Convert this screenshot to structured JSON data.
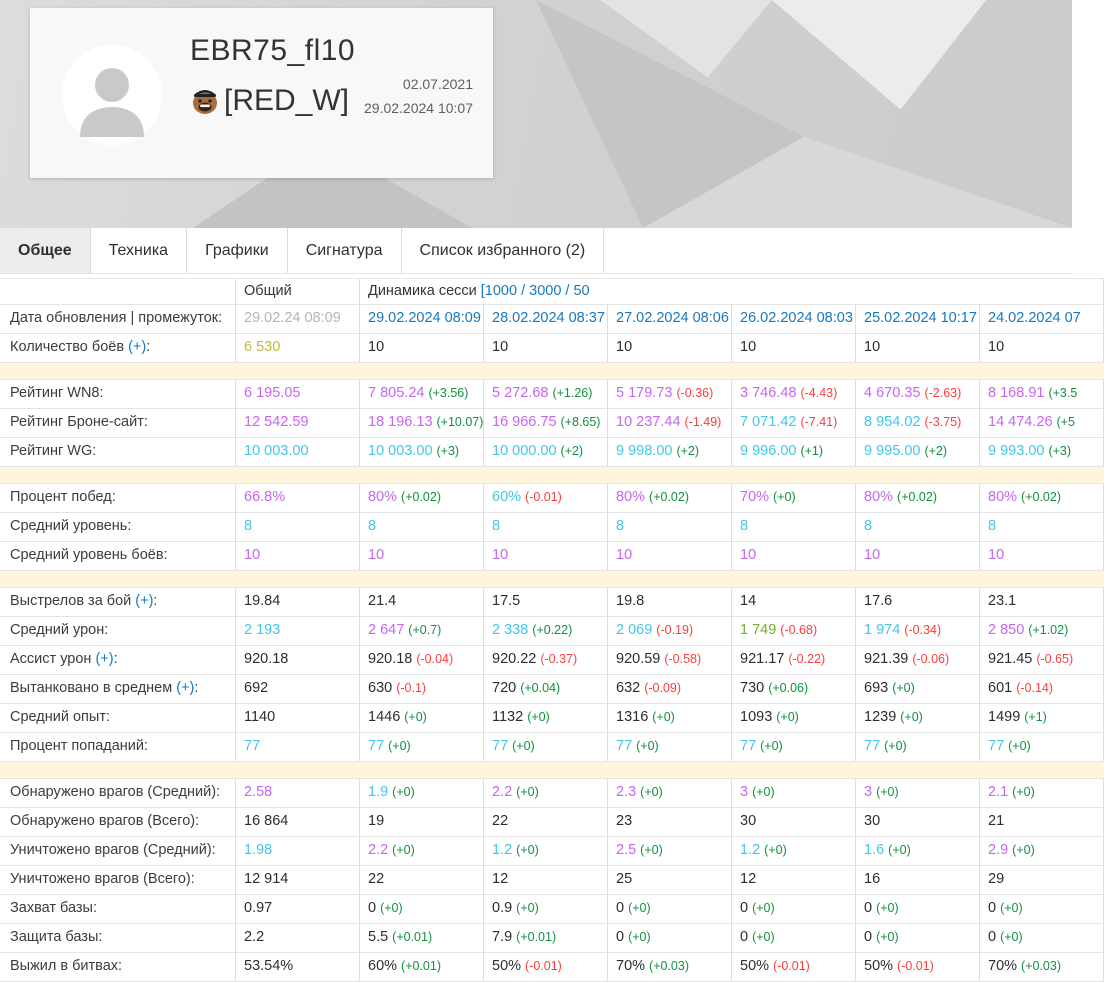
{
  "profile": {
    "name": "EBR75_fl10",
    "clan": "[RED_W]",
    "registered": "02.07.2021",
    "last_update": "29.02.2024 10:07"
  },
  "tabs": [
    {
      "name": "tab-general",
      "label": "Общее",
      "active": true
    },
    {
      "name": "tab-vehicles",
      "label": "Техника",
      "active": false
    },
    {
      "name": "tab-charts",
      "label": "Графики",
      "active": false
    },
    {
      "name": "tab-signature",
      "label": "Сигнатура",
      "active": false
    },
    {
      "name": "tab-favorites",
      "label": "Список избранного (2)",
      "active": false
    }
  ],
  "table": {
    "header": {
      "overall": "Общий",
      "dynamics": "Динамика сесси",
      "dynamics_link": "[1000 / 3000 / 50"
    },
    "rows": [
      {
        "label": "Дата обновления | промежуток",
        "plus": false,
        "cells": [
          {
            "v": "29.02.24 08:09",
            "vc": "gray"
          },
          {
            "v": "29.02.2024 08:09",
            "vc": "blue",
            "link": true
          },
          {
            "v": "28.02.2024 08:37",
            "vc": "blue",
            "link": true
          },
          {
            "v": "27.02.2024 08:06",
            "vc": "blue",
            "link": true
          },
          {
            "v": "26.02.2024 08:03",
            "vc": "blue",
            "link": true
          },
          {
            "v": "25.02.2024 10:17",
            "vc": "blue",
            "link": true
          },
          {
            "v": "24.02.2024 07",
            "vc": "blue",
            "link": true
          }
        ]
      },
      {
        "label": "Количество боёв",
        "plus": true,
        "cells": [
          {
            "v": "6 530",
            "vc": "olive"
          },
          {
            "v": "10"
          },
          {
            "v": "10"
          },
          {
            "v": "10"
          },
          {
            "v": "10"
          },
          {
            "v": "10"
          },
          {
            "v": "10"
          }
        ]
      },
      {
        "spacer": true
      },
      {
        "label": "Рейтинг WN8",
        "plus": false,
        "cells": [
          {
            "v": "6 195.05",
            "vc": "purple"
          },
          {
            "v": "7 805.24",
            "vc": "purple",
            "d": "(+3.56)",
            "dc": "up"
          },
          {
            "v": "5 272.68",
            "vc": "purple",
            "d": "(+1.26)",
            "dc": "up"
          },
          {
            "v": "5 179.73",
            "vc": "purple",
            "d": "(-0.36)",
            "dc": "down"
          },
          {
            "v": "3 746.48",
            "vc": "purple",
            "d": "(-4.43)",
            "dc": "down"
          },
          {
            "v": "4 670.35",
            "vc": "purple",
            "d": "(-2.63)",
            "dc": "down"
          },
          {
            "v": "8 168.91",
            "vc": "purple",
            "d": "(+3.5",
            "dc": "up"
          }
        ]
      },
      {
        "label": "Рейтинг Броне-сайт",
        "plus": false,
        "cells": [
          {
            "v": "12 542.59",
            "vc": "purple"
          },
          {
            "v": "18 196.13",
            "vc": "purple",
            "d": "(+10.07)",
            "dc": "up"
          },
          {
            "v": "16 966.75",
            "vc": "purple",
            "d": "(+8.65)",
            "dc": "up"
          },
          {
            "v": "10 237.44",
            "vc": "purple",
            "d": "(-1.49)",
            "dc": "down"
          },
          {
            "v": "7 071.42",
            "vc": "cyan",
            "d": "(-7.41)",
            "dc": "down"
          },
          {
            "v": "8 954.02",
            "vc": "cyan",
            "d": "(-3.75)",
            "dc": "down"
          },
          {
            "v": "14 474.26",
            "vc": "purple",
            "d": "(+5",
            "dc": "up"
          }
        ]
      },
      {
        "label": "Рейтинг WG",
        "plus": false,
        "cells": [
          {
            "v": "10 003.00",
            "vc": "cyan"
          },
          {
            "v": "10 003.00",
            "vc": "cyan",
            "d": "(+3)",
            "dc": "up"
          },
          {
            "v": "10 000.00",
            "vc": "cyan",
            "d": "(+2)",
            "dc": "up"
          },
          {
            "v": "9 998.00",
            "vc": "cyan",
            "d": "(+2)",
            "dc": "up"
          },
          {
            "v": "9 996.00",
            "vc": "cyan",
            "d": "(+1)",
            "dc": "up"
          },
          {
            "v": "9 995.00",
            "vc": "cyan",
            "d": "(+2)",
            "dc": "up"
          },
          {
            "v": "9 993.00",
            "vc": "cyan",
            "d": "(+3)",
            "dc": "up"
          }
        ]
      },
      {
        "spacer": true
      },
      {
        "label": "Процент побед",
        "plus": false,
        "cells": [
          {
            "v": "66.8%",
            "vc": "purple"
          },
          {
            "v": "80%",
            "vc": "purple",
            "d": "(+0.02)",
            "dc": "up"
          },
          {
            "v": "60%",
            "vc": "cyan",
            "d": "(-0.01)",
            "dc": "down"
          },
          {
            "v": "80%",
            "vc": "purple",
            "d": "(+0.02)",
            "dc": "up"
          },
          {
            "v": "70%",
            "vc": "purple",
            "d": "(+0)",
            "dc": "up"
          },
          {
            "v": "80%",
            "vc": "purple",
            "d": "(+0.02)",
            "dc": "up"
          },
          {
            "v": "80%",
            "vc": "purple",
            "d": "(+0.02)",
            "dc": "up"
          }
        ]
      },
      {
        "label": "Средний уровень",
        "plus": false,
        "cells": [
          {
            "v": "8",
            "vc": "cyan"
          },
          {
            "v": "8",
            "vc": "cyan"
          },
          {
            "v": "8",
            "vc": "cyan"
          },
          {
            "v": "8",
            "vc": "cyan"
          },
          {
            "v": "8",
            "vc": "cyan"
          },
          {
            "v": "8",
            "vc": "cyan"
          },
          {
            "v": "8",
            "vc": "cyan"
          }
        ]
      },
      {
        "label": "Средний уровень боёв",
        "plus": false,
        "cells": [
          {
            "v": "10",
            "vc": "purple"
          },
          {
            "v": "10",
            "vc": "purple"
          },
          {
            "v": "10",
            "vc": "purple"
          },
          {
            "v": "10",
            "vc": "purple"
          },
          {
            "v": "10",
            "vc": "purple"
          },
          {
            "v": "10",
            "vc": "purple"
          },
          {
            "v": "10",
            "vc": "purple"
          }
        ]
      },
      {
        "spacer": true
      },
      {
        "label": "Выстрелов за бой",
        "plus": true,
        "cells": [
          {
            "v": "19.84"
          },
          {
            "v": "21.4"
          },
          {
            "v": "17.5"
          },
          {
            "v": "19.8"
          },
          {
            "v": "14"
          },
          {
            "v": "17.6"
          },
          {
            "v": "23.1"
          }
        ]
      },
      {
        "label": "Средний урон",
        "plus": false,
        "cells": [
          {
            "v": "2 193",
            "vc": "cyan"
          },
          {
            "v": "2 647",
            "vc": "purple",
            "d": "(+0.7)",
            "dc": "up"
          },
          {
            "v": "2 338",
            "vc": "cyan",
            "d": "(+0.22)",
            "dc": "up"
          },
          {
            "v": "2 069",
            "vc": "cyan",
            "d": "(-0.19)",
            "dc": "down"
          },
          {
            "v": "1 749",
            "vc": "green",
            "d": "(-0.68)",
            "dc": "down"
          },
          {
            "v": "1 974",
            "vc": "cyan",
            "d": "(-0.34)",
            "dc": "down"
          },
          {
            "v": "2 850",
            "vc": "purple",
            "d": "(+1.02)",
            "dc": "up"
          }
        ]
      },
      {
        "label": "Ассист урон",
        "plus": true,
        "cells": [
          {
            "v": "920.18"
          },
          {
            "v": "920.18",
            "d": "(-0.04)",
            "dc": "down"
          },
          {
            "v": "920.22",
            "d": "(-0.37)",
            "dc": "down"
          },
          {
            "v": "920.59",
            "d": "(-0.58)",
            "dc": "down"
          },
          {
            "v": "921.17",
            "d": "(-0.22)",
            "dc": "down"
          },
          {
            "v": "921.39",
            "d": "(-0.06)",
            "dc": "down"
          },
          {
            "v": "921.45",
            "d": "(-0.65)",
            "dc": "down"
          }
        ]
      },
      {
        "label": "Вытанковано в среднем",
        "plus": true,
        "cells": [
          {
            "v": "692"
          },
          {
            "v": "630",
            "d": "(-0.1)",
            "dc": "down"
          },
          {
            "v": "720",
            "d": "(+0.04)",
            "dc": "up"
          },
          {
            "v": "632",
            "d": "(-0.09)",
            "dc": "down"
          },
          {
            "v": "730",
            "d": "(+0.06)",
            "dc": "up"
          },
          {
            "v": "693",
            "d": "(+0)",
            "dc": "up"
          },
          {
            "v": "601",
            "d": "(-0.14)",
            "dc": "down"
          }
        ]
      },
      {
        "label": "Средний опыт",
        "plus": false,
        "cells": [
          {
            "v": "1140"
          },
          {
            "v": "1446",
            "d": "(+0)",
            "dc": "up"
          },
          {
            "v": "1132",
            "d": "(+0)",
            "dc": "up"
          },
          {
            "v": "1316",
            "d": "(+0)",
            "dc": "up"
          },
          {
            "v": "1093",
            "d": "(+0)",
            "dc": "up"
          },
          {
            "v": "1239",
            "d": "(+0)",
            "dc": "up"
          },
          {
            "v": "1499",
            "d": "(+1)",
            "dc": "up"
          }
        ]
      },
      {
        "label": "Процент попаданий",
        "plus": false,
        "cells": [
          {
            "v": "77",
            "vc": "cyan"
          },
          {
            "v": "77",
            "vc": "cyan",
            "d": "(+0)",
            "dc": "up"
          },
          {
            "v": "77",
            "vc": "cyan",
            "d": "(+0)",
            "dc": "up"
          },
          {
            "v": "77",
            "vc": "cyan",
            "d": "(+0)",
            "dc": "up"
          },
          {
            "v": "77",
            "vc": "cyan",
            "d": "(+0)",
            "dc": "up"
          },
          {
            "v": "77",
            "vc": "cyan",
            "d": "(+0)",
            "dc": "up"
          },
          {
            "v": "77",
            "vc": "cyan",
            "d": "(+0)",
            "dc": "up"
          }
        ]
      },
      {
        "spacer": true
      },
      {
        "label": "Обнаружено врагов (Средний)",
        "plus": false,
        "cells": [
          {
            "v": "2.58",
            "vc": "purple"
          },
          {
            "v": "1.9",
            "vc": "cyan",
            "d": "(+0)",
            "dc": "up"
          },
          {
            "v": "2.2",
            "vc": "purple",
            "d": "(+0)",
            "dc": "up"
          },
          {
            "v": "2.3",
            "vc": "purple",
            "d": "(+0)",
            "dc": "up"
          },
          {
            "v": "3",
            "vc": "purple",
            "d": "(+0)",
            "dc": "up"
          },
          {
            "v": "3",
            "vc": "purple",
            "d": "(+0)",
            "dc": "up"
          },
          {
            "v": "2.1",
            "vc": "purple",
            "d": "(+0)",
            "dc": "up"
          }
        ]
      },
      {
        "label": "Обнаружено врагов (Всего)",
        "plus": false,
        "cells": [
          {
            "v": "16 864"
          },
          {
            "v": "19"
          },
          {
            "v": "22"
          },
          {
            "v": "23"
          },
          {
            "v": "30"
          },
          {
            "v": "30"
          },
          {
            "v": "21"
          }
        ]
      },
      {
        "label": "Уничтожено врагов (Средний)",
        "plus": false,
        "cells": [
          {
            "v": "1.98",
            "vc": "cyan"
          },
          {
            "v": "2.2",
            "vc": "purple",
            "d": "(+0)",
            "dc": "up"
          },
          {
            "v": "1.2",
            "vc": "cyan",
            "d": "(+0)",
            "dc": "up"
          },
          {
            "v": "2.5",
            "vc": "purple",
            "d": "(+0)",
            "dc": "up"
          },
          {
            "v": "1.2",
            "vc": "cyan",
            "d": "(+0)",
            "dc": "up"
          },
          {
            "v": "1.6",
            "vc": "cyan",
            "d": "(+0)",
            "dc": "up"
          },
          {
            "v": "2.9",
            "vc": "purple",
            "d": "(+0)",
            "dc": "up"
          }
        ]
      },
      {
        "label": "Уничтожено врагов (Всего)",
        "plus": false,
        "cells": [
          {
            "v": "12 914"
          },
          {
            "v": "22"
          },
          {
            "v": "12"
          },
          {
            "v": "25"
          },
          {
            "v": "12"
          },
          {
            "v": "16"
          },
          {
            "v": "29"
          }
        ]
      },
      {
        "label": "Захват базы",
        "plus": false,
        "cells": [
          {
            "v": "0.97"
          },
          {
            "v": "0",
            "d": "(+0)",
            "dc": "up"
          },
          {
            "v": "0.9",
            "d": "(+0)",
            "dc": "up"
          },
          {
            "v": "0",
            "d": "(+0)",
            "dc": "up"
          },
          {
            "v": "0",
            "d": "(+0)",
            "dc": "up"
          },
          {
            "v": "0",
            "d": "(+0)",
            "dc": "up"
          },
          {
            "v": "0",
            "d": "(+0)",
            "dc": "up"
          }
        ]
      },
      {
        "label": "Защита базы",
        "plus": false,
        "cells": [
          {
            "v": "2.2"
          },
          {
            "v": "5.5",
            "d": "(+0.01)",
            "dc": "up"
          },
          {
            "v": "7.9",
            "d": "(+0.01)",
            "dc": "up"
          },
          {
            "v": "0",
            "d": "(+0)",
            "dc": "up"
          },
          {
            "v": "0",
            "d": "(+0)",
            "dc": "up"
          },
          {
            "v": "0",
            "d": "(+0)",
            "dc": "up"
          },
          {
            "v": "0",
            "d": "(+0)",
            "dc": "up"
          }
        ]
      },
      {
        "label": "Выжил в битвах",
        "plus": false,
        "cells": [
          {
            "v": "53.54%"
          },
          {
            "v": "60%",
            "d": "(+0.01)",
            "dc": "up"
          },
          {
            "v": "50%",
            "d": "(-0.01)",
            "dc": "down"
          },
          {
            "v": "70%",
            "d": "(+0.03)",
            "dc": "up"
          },
          {
            "v": "50%",
            "d": "(-0.01)",
            "dc": "down"
          },
          {
            "v": "50%",
            "d": "(-0.01)",
            "dc": "down"
          },
          {
            "v": "70%",
            "d": "(+0.03)",
            "dc": "up"
          }
        ]
      }
    ]
  }
}
